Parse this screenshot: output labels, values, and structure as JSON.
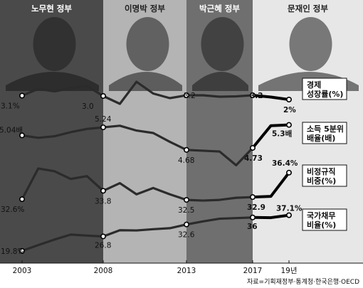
{
  "chart_data": {
    "type": "line",
    "eras": [
      {
        "name": "노무현 정부",
        "start": 2003,
        "end": 2008,
        "shade": "#4a4a4a",
        "title_color": "#ffffff"
      },
      {
        "name": "이명박 정부",
        "start": 2008,
        "end": 2013,
        "shade": "#b4b4b4",
        "title_color": "#222222"
      },
      {
        "name": "박근혜 정부",
        "start": 2013,
        "end": 2017,
        "shade": "#6f6f6f",
        "title_color": "#ffffff"
      },
      {
        "name": "문재인 정부",
        "start": 2017,
        "end": 2020,
        "shade": "#e7e7e7",
        "title_color": "#222222"
      }
    ],
    "x_ticks": [
      "2003",
      "2008",
      "2013",
      "2017",
      "19년"
    ],
    "series": [
      {
        "name": "경제 성장률(%)",
        "x": [
          2003,
          2004,
          2005,
          2006,
          2007,
          2008,
          2009,
          2010,
          2011,
          2012,
          2013,
          2014,
          2015,
          2016,
          2017,
          2018,
          2019
        ],
        "values": [
          3.1,
          5.0,
          4.3,
          5.2,
          5.8,
          3.0,
          0.8,
          7.0,
          3.7,
          2.4,
          3.2,
          3.2,
          2.8,
          2.9,
          3.2,
          2.7,
          2.0
        ],
        "labels": {
          "2003": "3.1%",
          "2008": "3.0",
          "2013": "3.2",
          "2017": "3.2",
          "2019": "2%"
        },
        "legend": [
          "경제",
          "성장률(%)"
        ]
      },
      {
        "name": "소득 5분위 배율(배)",
        "x": [
          2003,
          2004,
          2005,
          2006,
          2007,
          2008,
          2009,
          2010,
          2011,
          2012,
          2013,
          2014,
          2015,
          2016,
          2017,
          2018,
          2019
        ],
        "values": [
          5.04,
          4.98,
          5.02,
          5.12,
          5.2,
          5.24,
          5.28,
          5.16,
          5.1,
          4.88,
          4.68,
          4.66,
          4.64,
          4.3,
          4.73,
          5.28,
          5.3
        ],
        "labels": {
          "2003": "5.04배",
          "2008": "5.24",
          "2013": "4.68",
          "2017": "4.73",
          "2019": "5.3배"
        },
        "legend": [
          "소득 5분위",
          "배율(배)"
        ]
      },
      {
        "name": "비정규직 비중(%)",
        "x": [
          2003,
          2004,
          2005,
          2006,
          2007,
          2008,
          2009,
          2010,
          2011,
          2012,
          2013,
          2014,
          2015,
          2016,
          2017,
          2018,
          2019
        ],
        "values": [
          32.6,
          37.0,
          36.6,
          35.5,
          35.9,
          33.8,
          34.9,
          33.3,
          34.2,
          33.3,
          32.5,
          32.4,
          32.5,
          32.8,
          32.9,
          33.0,
          36.4
        ],
        "labels": {
          "2003": "32.6%",
          "2008": "33.8",
          "2013": "32.5",
          "2017": "32.9",
          "2019": "36.4%"
        },
        "legend": [
          "비정규직",
          "비중(%)"
        ]
      },
      {
        "name": "국가채무 비율(%)",
        "x": [
          2003,
          2004,
          2005,
          2006,
          2007,
          2008,
          2009,
          2010,
          2011,
          2012,
          2013,
          2014,
          2015,
          2016,
          2017,
          2018,
          2019
        ],
        "values": [
          19.8,
          22.6,
          25.3,
          27.7,
          27.2,
          26.8,
          29.8,
          29.7,
          30.3,
          30.8,
          32.6,
          34.1,
          35.4,
          35.7,
          36.0,
          35.9,
          37.1
        ],
        "labels": {
          "2003": "19.8%",
          "2008": "26.8",
          "2013": "32.6",
          "2017": "36",
          "2019": "37.1%"
        },
        "legend": [
          "국가채무",
          "비율(%)"
        ]
      }
    ],
    "source": "자료=기획재정부·통계청·한국은행·OECD"
  }
}
